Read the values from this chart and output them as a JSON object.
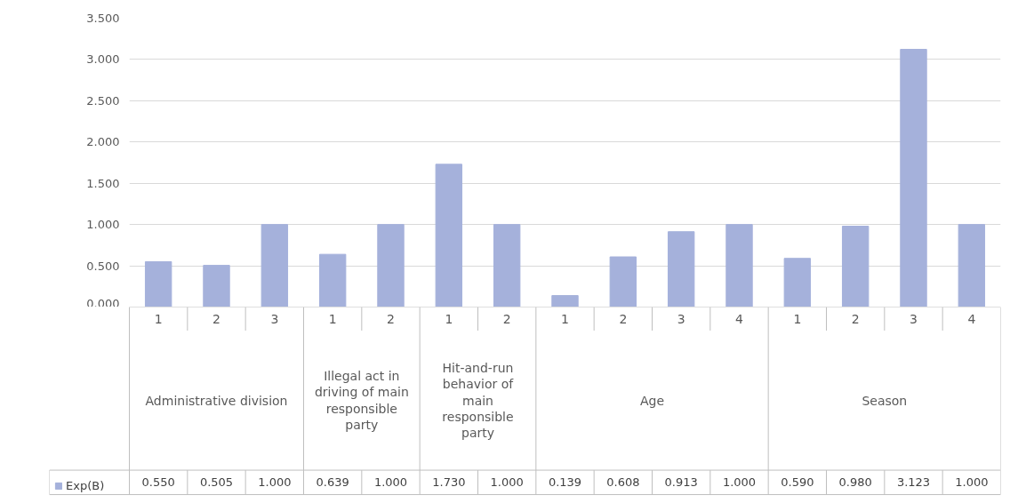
{
  "chart_data": {
    "type": "bar",
    "categories": [
      "1",
      "2",
      "3",
      "1",
      "2",
      "1",
      "2",
      "1",
      "2",
      "3",
      "4",
      "1",
      "2",
      "3",
      "4"
    ],
    "annotations": [
      "Administrative division",
      "Illegal act in driving of main responsible party",
      "Hit-and-run behavior of main responsible party",
      "Age",
      "Season"
    ],
    "series": [
      {
        "name": "Exp(B)",
        "color": "#a5b1db",
        "values": [
          0.55,
          0.505,
          1.0,
          0.639,
          1.0,
          1.73,
          1.0,
          0.139,
          0.608,
          0.913,
          1.0,
          0.59,
          0.98,
          3.123,
          1.0
        ],
        "value_labels": [
          "0.550",
          "0.505",
          "1.000",
          "0.639",
          "1.000",
          "1.730",
          "1.000",
          "0.139",
          "0.608",
          "0.913",
          "1.000",
          "0.590",
          "0.980",
          "3.123",
          "1.000"
        ]
      }
    ],
    "ylim": [
      0,
      3.5
    ],
    "yticks": [
      {
        "value": 0,
        "label": "0.000"
      },
      {
        "value": 0.5,
        "label": "0.500"
      },
      {
        "value": 1,
        "label": "1.000"
      },
      {
        "value": 1.5,
        "label": "1.500"
      },
      {
        "value": 2,
        "label": "2.000"
      },
      {
        "value": 2.5,
        "label": "2.500"
      },
      {
        "value": 3,
        "label": "3.000"
      },
      {
        "value": 3.5,
        "label": "3.500"
      }
    ],
    "grid": "y",
    "legend": "bottom",
    "data_labels": true
  }
}
